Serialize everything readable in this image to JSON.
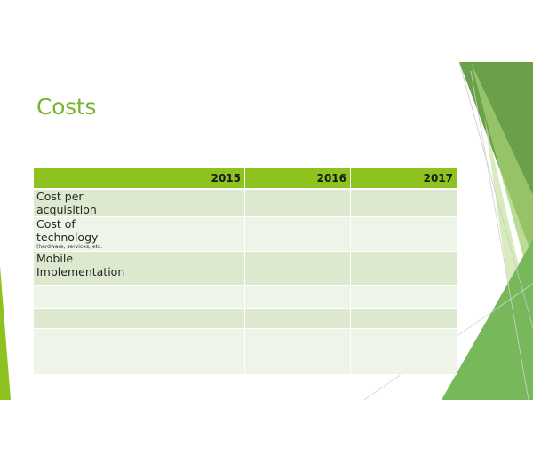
{
  "slide": {
    "title": "Costs",
    "accent_color": "#8dc21f",
    "title_color": "#7ab32e"
  },
  "table": {
    "columns": [
      "",
      "2015",
      "2016",
      "2017"
    ],
    "rows": [
      {
        "label": "Cost per acquisition",
        "note": "",
        "values": [
          "",
          "",
          ""
        ]
      },
      {
        "label": "Cost of technology",
        "note": "(hardware, services, etc.",
        "values": [
          "",
          "",
          ""
        ]
      },
      {
        "label": "Mobile Implementation",
        "note": "",
        "values": [
          "",
          "",
          ""
        ]
      },
      {
        "label": "",
        "note": "",
        "values": [
          "",
          "",
          ""
        ]
      },
      {
        "label": "",
        "note": "",
        "values": [
          "",
          "",
          ""
        ]
      },
      {
        "label": "",
        "note": "",
        "values": [
          "",
          "",
          ""
        ]
      }
    ]
  }
}
